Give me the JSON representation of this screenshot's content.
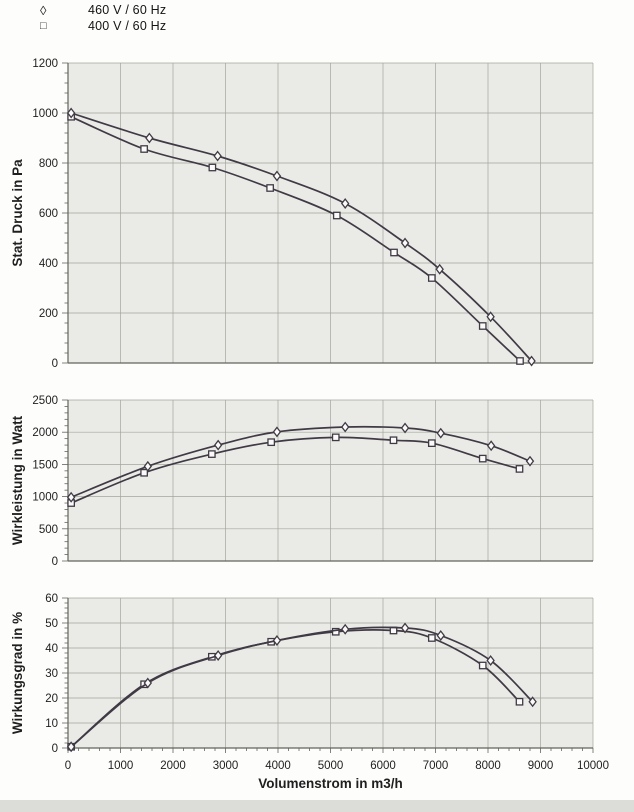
{
  "legend": {
    "items": [
      {
        "marker": "diamond",
        "glyph": "◊",
        "label": "460 V / 60 Hz"
      },
      {
        "marker": "square",
        "glyph": "□",
        "label": "400 V / 60 Hz"
      }
    ]
  },
  "colors": {
    "plot_bg": "#eaebe7",
    "grid": "#a3a49c",
    "axis": "#63635d",
    "curve": "#413a45",
    "marker_fill": "#fafaf8",
    "text": "#1f1f1f"
  },
  "chart_data": [
    {
      "type": "line",
      "ylabel": "Stat. Druck in Pa",
      "ylim": [
        0,
        1200
      ],
      "ytick_step": 200,
      "xlim": [
        0,
        10000
      ],
      "xtick_step": 1000,
      "show_x_tick_labels": false,
      "xlabel": "",
      "grid": true,
      "legend_position": "top-left-above",
      "series": [
        {
          "name": "460 V / 60 Hz",
          "marker": "diamond",
          "points": [
            [
              60,
              1000
            ],
            [
              1550,
              900
            ],
            [
              2850,
              828
            ],
            [
              3980,
              748
            ],
            [
              5280,
              638
            ],
            [
              6420,
              480
            ],
            [
              7080,
              375
            ],
            [
              8050,
              185
            ],
            [
              8830,
              8
            ]
          ]
        },
        {
          "name": "400 V / 60 Hz",
          "marker": "square",
          "points": [
            [
              60,
              985
            ],
            [
              1450,
              856
            ],
            [
              2750,
              782
            ],
            [
              3850,
              700
            ],
            [
              5120,
              590
            ],
            [
              6210,
              442
            ],
            [
              6930,
              340
            ],
            [
              7900,
              148
            ],
            [
              8610,
              8
            ]
          ]
        }
      ]
    },
    {
      "type": "line",
      "ylabel": "Wirkleistung in Watt",
      "ylim": [
        0,
        2500
      ],
      "ytick_step": 500,
      "xlim": [
        0,
        10000
      ],
      "xtick_step": 1000,
      "show_x_tick_labels": false,
      "xlabel": "",
      "grid": true,
      "series": [
        {
          "name": "460 V / 60 Hz",
          "marker": "diamond",
          "points": [
            [
              60,
              990
            ],
            [
              1520,
              1470
            ],
            [
              2860,
              1800
            ],
            [
              3980,
              2005
            ],
            [
              5280,
              2080
            ],
            [
              6420,
              2065
            ],
            [
              7100,
              1985
            ],
            [
              8060,
              1790
            ],
            [
              8800,
              1550
            ]
          ]
        },
        {
          "name": "400 V / 60 Hz",
          "marker": "square",
          "points": [
            [
              60,
              900
            ],
            [
              1450,
              1370
            ],
            [
              2740,
              1660
            ],
            [
              3870,
              1845
            ],
            [
              5100,
              1920
            ],
            [
              6200,
              1875
            ],
            [
              6930,
              1830
            ],
            [
              7900,
              1590
            ],
            [
              8600,
              1430
            ]
          ]
        }
      ]
    },
    {
      "type": "line",
      "ylabel": "Wirkungsgrad in %",
      "ylim": [
        0,
        60
      ],
      "ytick_step": 10,
      "xlim": [
        0,
        10000
      ],
      "xtick_step": 1000,
      "show_x_tick_labels": true,
      "xlabel": "Volumenstrom in m3/h",
      "grid": true,
      "series": [
        {
          "name": "460 V / 60 Hz",
          "marker": "diamond",
          "points": [
            [
              60,
              0.5
            ],
            [
              1520,
              26
            ],
            [
              2860,
              37
            ],
            [
              3980,
              43
            ],
            [
              5280,
              47.5
            ],
            [
              6420,
              48
            ],
            [
              7100,
              45
            ],
            [
              8050,
              35
            ],
            [
              8850,
              18.5
            ]
          ]
        },
        {
          "name": "400 V / 60 Hz",
          "marker": "square",
          "points": [
            [
              60,
              0.5
            ],
            [
              1450,
              25.5
            ],
            [
              2740,
              36.5
            ],
            [
              3870,
              42.5
            ],
            [
              5100,
              46.5
            ],
            [
              6200,
              47
            ],
            [
              6930,
              44
            ],
            [
              7900,
              33
            ],
            [
              8600,
              18.5
            ]
          ]
        }
      ]
    }
  ]
}
